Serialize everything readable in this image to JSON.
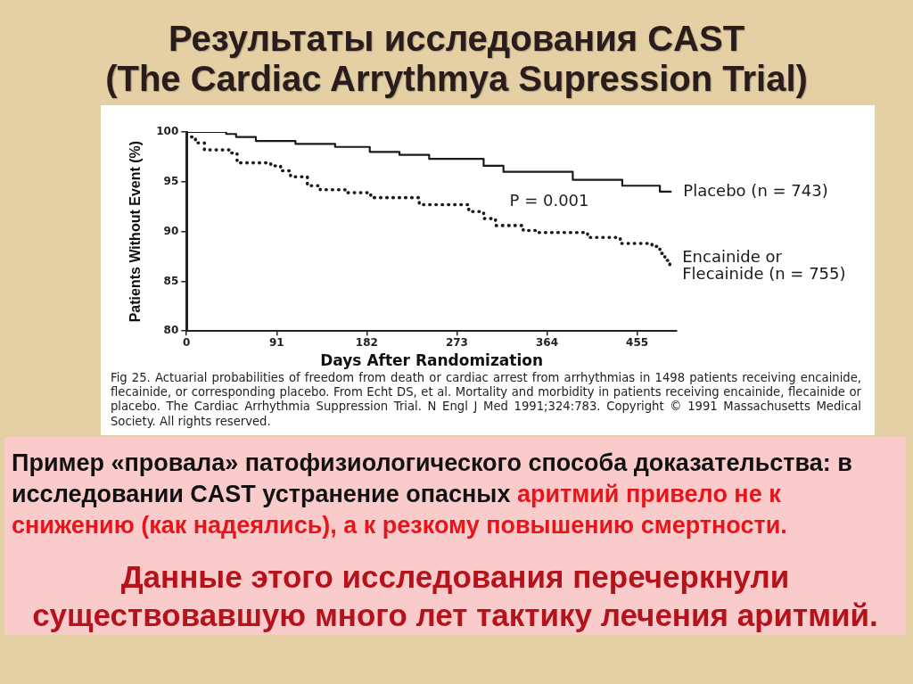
{
  "chart_data": {
    "type": "step",
    "title": "Результаты исследования CAST",
    "subtitle": "(The Cardiac Arrythmya Supression Trial)",
    "xlabel": "Days After Randomization",
    "ylabel": "Patients Without Event (%)",
    "xlim": [
      0,
      495
    ],
    "xticks": [
      0,
      91,
      182,
      273,
      364,
      455
    ],
    "ylim": [
      80,
      100
    ],
    "yticks": [
      80,
      85,
      90,
      95,
      100
    ],
    "grid": false,
    "legend": false,
    "series": [
      {
        "name": "Placebo (n = 743)",
        "color": "#1a1a1a",
        "line_style": "solid",
        "x": [
          0,
          40,
          50,
          70,
          110,
          150,
          185,
          215,
          245,
          300,
          320,
          390,
          440,
          478,
          489
        ],
        "values": [
          100,
          99.8,
          99.5,
          99.1,
          98.8,
          98.5,
          98.0,
          97.7,
          97.3,
          96.6,
          96.0,
          95.2,
          94.6,
          94.0,
          94.0
        ]
      },
      {
        "name": "Encainide or Flecainide (n = 755)",
        "color": "#1a1a1a",
        "line_style": "dotted",
        "x": [
          5,
          9,
          18,
          45,
          51,
          85,
          95,
          105,
          122,
          135,
          160,
          186,
          235,
          285,
          300,
          312,
          340,
          354,
          405,
          438,
          470,
          478,
          483,
          488
        ],
        "values": [
          99.5,
          98.9,
          98.2,
          97.9,
          96.9,
          96.6,
          96.1,
          95.5,
          94.6,
          94.2,
          93.9,
          93.4,
          92.7,
          92.0,
          91.3,
          90.6,
          90.1,
          89.9,
          89.4,
          88.8,
          88.5,
          87.8,
          87.1,
          86.5
        ]
      }
    ],
    "annotations": [
      "P = 0.001",
      "Fig 25. Actuarial probabilities of freedom from death or cardiac arrest from arrhythmias in 1498 patients receiving encainide, flecainide, or corresponding placebo. From Echt DS, et al. Mortality and morbidity in patients receiving encainide, flecainide or placebo. The Cardiac Arrhythmia Suppression Trial. N Engl J Med 1991;324:783. Copyright © 1991 Massachusetts Medical Society. All rights reserved.",
      "Пример «провала» патофизиологического способа доказательства: в исследовании CAST устранение опасных",
      "аритмий привело не к снижению (как надеялись), а к резкому повышению смертности.",
      "Данные этого исследования  перечеркнули существовавшую много лет тактику лечения аритмий."
    ]
  }
}
